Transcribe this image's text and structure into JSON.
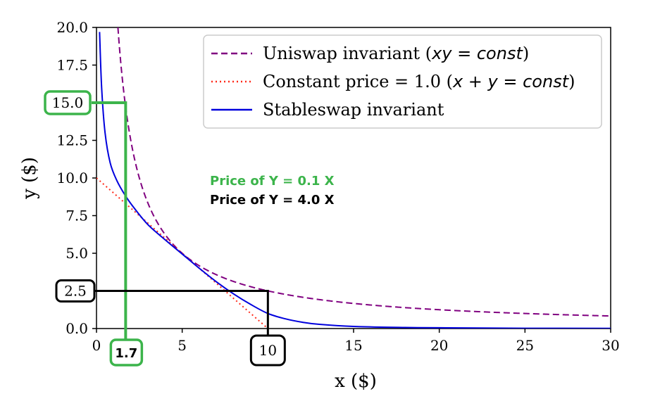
{
  "chart_data": {
    "type": "line",
    "xlabel": "x ($)",
    "ylabel": "y ($)",
    "xlim": [
      0,
      30
    ],
    "ylim": [
      0,
      20
    ],
    "x_ticks": [
      "0",
      "5",
      "10",
      "15",
      "20",
      "25",
      "30"
    ],
    "y_ticks": [
      "0.0",
      "2.5",
      "5.0",
      "7.5",
      "10.0",
      "12.5",
      "15.0",
      "17.5",
      "20.0"
    ],
    "grid": false,
    "legend_position": "top-right",
    "series": [
      {
        "name": "Uniswap invariant (xy = const)",
        "legend_plain": "Uniswap invariant (",
        "legend_math": "xy",
        "legend_eq": " = ",
        "legend_math2": "const",
        "legend_close": ")",
        "color": "#800080",
        "style": "dashed",
        "x": [
          1.25,
          1.5,
          2,
          2.5,
          3,
          3.5,
          4,
          4.5,
          5,
          6,
          7,
          8,
          9,
          10,
          12,
          15,
          20,
          25,
          30
        ],
        "y": [
          20.0,
          16.7,
          12.5,
          10.0,
          8.33,
          7.14,
          6.25,
          5.56,
          5.0,
          4.17,
          3.57,
          3.13,
          2.78,
          2.5,
          2.08,
          1.67,
          1.25,
          1.0,
          0.83
        ]
      },
      {
        "name": "Constant price = 1.0 (x + y = const)",
        "legend_plain": "Constant price = 1.0 (",
        "legend_math": "x",
        "legend_eq": " + ",
        "legend_math2": "y",
        "legend_eq2": " = ",
        "legend_math3": "const",
        "legend_close": ")",
        "color": "#ff2a1a",
        "style": "dotted",
        "x": [
          0,
          10
        ],
        "y": [
          10.0,
          0.0
        ]
      },
      {
        "name": "Stableswap invariant",
        "color": "#0000dd",
        "style": "solid",
        "x": [
          0.18,
          0.3,
          0.5,
          0.8,
          1.2,
          1.7,
          2.2,
          3,
          4,
          5,
          6,
          7,
          8,
          9,
          10,
          11,
          12,
          13,
          15,
          18,
          20,
          25,
          30
        ],
        "y": [
          19.7,
          16.0,
          13.0,
          11.0,
          9.8,
          8.8,
          8.0,
          6.9,
          5.9,
          4.95,
          4.0,
          3.1,
          2.3,
          1.6,
          1.0,
          0.65,
          0.42,
          0.28,
          0.14,
          0.07,
          0.05,
          0.02,
          0.01
        ]
      }
    ],
    "annotations": {
      "green": {
        "text": "Price of Y = 0.1 X",
        "color": "#3cb44b",
        "x": 1.7,
        "y": 15.0,
        "x_label": "1.7",
        "y_label": "15.0"
      },
      "black": {
        "text": "Price of Y = 4.0 X",
        "color": "#000000",
        "x": 10,
        "y": 2.5,
        "x_label": "10",
        "y_label": "2.5"
      }
    }
  }
}
